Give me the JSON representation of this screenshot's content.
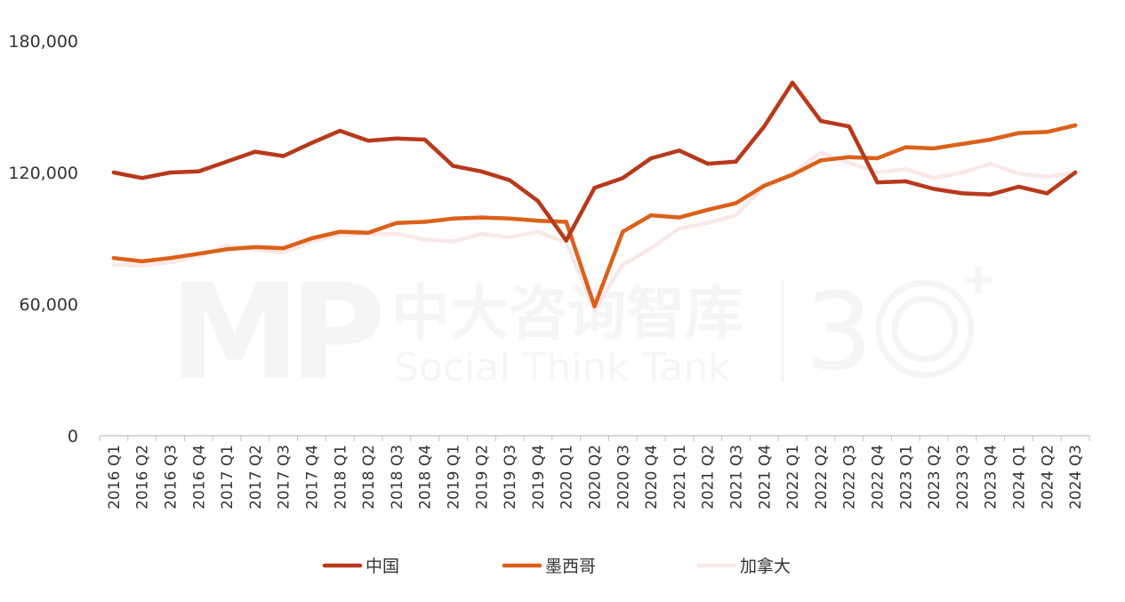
{
  "chart_data": {
    "type": "line",
    "categories": [
      "2016 Q1",
      "2016 Q2",
      "2016 Q3",
      "2016 Q4",
      "2017 Q1",
      "2017 Q2",
      "2017 Q3",
      "2017 Q4",
      "2018 Q1",
      "2018 Q2",
      "2018 Q3",
      "2018 Q4",
      "2019 Q1",
      "2019 Q2",
      "2019 Q3",
      "2019 Q4",
      "2020 Q1",
      "2020 Q2",
      "2020 Q3",
      "2020 Q4",
      "2021 Q1",
      "2021 Q2",
      "2021 Q3",
      "2021 Q4",
      "2022 Q1",
      "2022 Q2",
      "2022 Q3",
      "2022 Q4",
      "2023 Q1",
      "2023 Q2",
      "2023 Q3",
      "2023 Q4",
      "2024 Q1",
      "2024 Q2",
      "2024 Q3"
    ],
    "series": [
      {
        "name": "中国",
        "color": "#b8391a",
        "values": [
          120000,
          117500,
          120000,
          120500,
          125000,
          129500,
          127500,
          133500,
          139000,
          134500,
          135500,
          135000,
          123000,
          120500,
          116500,
          107000,
          89000,
          113000,
          117500,
          126500,
          130000,
          124000,
          125000,
          141000,
          161000,
          143500,
          141000,
          115500,
          116000,
          112500,
          110500,
          110000,
          113500,
          110500,
          120000
        ]
      },
      {
        "name": "墨西哥",
        "color": "#dc6019",
        "values": [
          81000,
          79500,
          81000,
          83000,
          85000,
          86000,
          85500,
          90000,
          93000,
          92500,
          97000,
          97500,
          99000,
          99500,
          99000,
          98000,
          97500,
          59000,
          93000,
          100500,
          99500,
          103000,
          106000,
          114000,
          119000,
          125500,
          127000,
          126500,
          131500,
          131000,
          133000,
          135000,
          138000,
          138500,
          141500
        ]
      },
      {
        "name": "加拿大",
        "color": "#fae8e8",
        "values": [
          78000,
          77500,
          79000,
          82000,
          86500,
          85000,
          83500,
          88500,
          91500,
          92000,
          92000,
          89500,
          88500,
          92000,
          90500,
          93000,
          88000,
          57500,
          78000,
          85500,
          94500,
          97000,
          100500,
          113500,
          119500,
          129000,
          124500,
          120000,
          121500,
          117500,
          120000,
          124000,
          119500,
          118000,
          120000
        ]
      }
    ],
    "ylim": [
      0,
      180000
    ],
    "yticks": [
      0,
      60000,
      120000,
      180000
    ],
    "ytick_labels": [
      "0",
      "60,000",
      "120,000",
      "180,000"
    ],
    "grid": false,
    "legend_position": "bottom"
  },
  "watermark": {
    "logo": "MP",
    "name_cn": "中大咨询智库",
    "name_en": "Social Think Tank"
  }
}
